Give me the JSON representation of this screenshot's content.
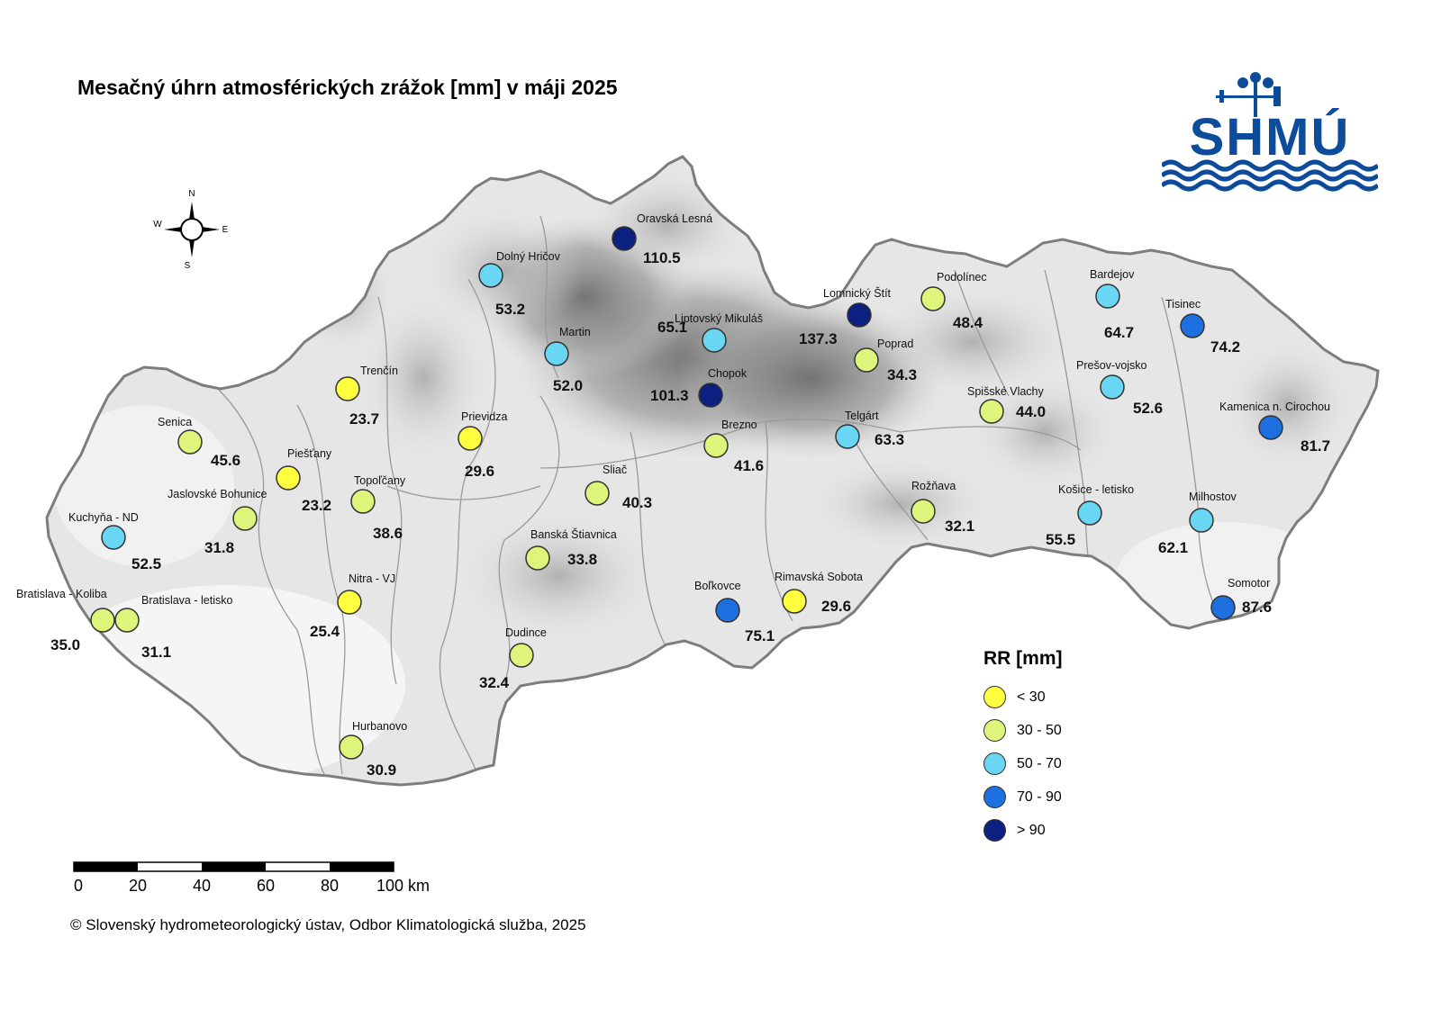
{
  "title": "Mesačný úhrn atmosférických zrážok [mm] v máji 2025",
  "copyright": "© Slovenský hydrometeorologický ústav, Odbor Klimatologická služba, 2025",
  "logo": {
    "text": "SHMÚ",
    "color": "#0d4c9a"
  },
  "compass": {
    "n": "N",
    "s": "S",
    "e": "E",
    "w": "W"
  },
  "scale": {
    "ticks": [
      "0",
      "20",
      "40",
      "60",
      "80",
      "100 km"
    ]
  },
  "legend": {
    "title": "RR [mm]",
    "classes": [
      {
        "label": "< 30",
        "color": "#ffff40"
      },
      {
        "label": "30 - 50",
        "color": "#ddf57a"
      },
      {
        "label": "50 - 70",
        "color": "#69d7f4"
      },
      {
        "label": "70 - 90",
        "color": "#1e6fe0"
      },
      {
        "label": "> 90",
        "color": "#0c2080"
      }
    ]
  },
  "stations": [
    {
      "name": "Oravská Lesná",
      "value": "110.5",
      "cls": 4
    },
    {
      "name": "Dolný Hričov",
      "value": "53.2",
      "cls": 2
    },
    {
      "name": "Martin",
      "value": "52.0",
      "cls": 2
    },
    {
      "name": "Liptovský Mikuláš",
      "value": "65.1",
      "cls": 2
    },
    {
      "name": "Chopok",
      "value": "101.3",
      "cls": 4
    },
    {
      "name": "Lomnický Štít",
      "value": "137.3",
      "cls": 4
    },
    {
      "name": "Podolínec",
      "value": "48.4",
      "cls": 1
    },
    {
      "name": "Poprad",
      "value": "34.3",
      "cls": 1
    },
    {
      "name": "Bardejov",
      "value": "64.7",
      "cls": 2
    },
    {
      "name": "Tisinec",
      "value": "74.2",
      "cls": 3
    },
    {
      "name": "Prešov-vojsko",
      "value": "52.6",
      "cls": 2
    },
    {
      "name": "Kamenica n. Cirochou",
      "value": "81.7",
      "cls": 3
    },
    {
      "name": "Spišské Vlachy",
      "value": "44.0",
      "cls": 1
    },
    {
      "name": "Telgárt",
      "value": "63.3",
      "cls": 2
    },
    {
      "name": "Trenčín",
      "value": "23.7",
      "cls": 0
    },
    {
      "name": "Senica",
      "value": "45.6",
      "cls": 1
    },
    {
      "name": "Prievidza",
      "value": "29.6",
      "cls": 0
    },
    {
      "name": "Piešťany",
      "value": "23.2",
      "cls": 0
    },
    {
      "name": "Topoľčany",
      "value": "38.6",
      "cls": 1
    },
    {
      "name": "Jaslovské Bohunice",
      "value": "31.8",
      "cls": 1
    },
    {
      "name": "Kuchyňa - ND",
      "value": "52.5",
      "cls": 2
    },
    {
      "name": "Brezno",
      "value": "41.6",
      "cls": 1
    },
    {
      "name": "Sliač",
      "value": "40.3",
      "cls": 1
    },
    {
      "name": "Rožňava",
      "value": "32.1",
      "cls": 1
    },
    {
      "name": "Košice - letisko",
      "value": "55.5",
      "cls": 2
    },
    {
      "name": "Milhostov",
      "value": "62.1",
      "cls": 2
    },
    {
      "name": "Banská Štiavnica",
      "value": "33.8",
      "cls": 1
    },
    {
      "name": "Nitra - VJ",
      "value": "25.4",
      "cls": 0
    },
    {
      "name": "Bratislava - Koliba",
      "value": "35.0",
      "cls": 1
    },
    {
      "name": "Bratislava - letisko",
      "value": "31.1",
      "cls": 1
    },
    {
      "name": "Boľkovce",
      "value": "75.1",
      "cls": 3
    },
    {
      "name": "Rimavská Sobota",
      "value": "29.6",
      "cls": 0
    },
    {
      "name": "Somotor",
      "value": "87.6",
      "cls": 3
    },
    {
      "name": "Dudince",
      "value": "32.4",
      "cls": 1
    },
    {
      "name": "Hurbanovo",
      "value": "30.9",
      "cls": 1
    }
  ]
}
